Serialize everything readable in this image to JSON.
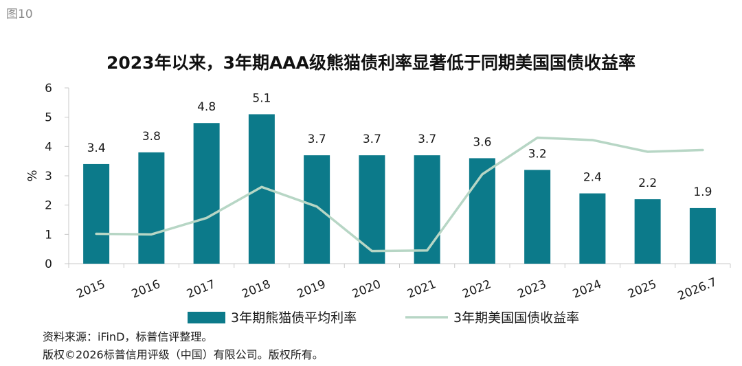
{
  "figure_label": "图10",
  "source_note": "资料来源：iFinD，标普信评整理。",
  "copyright": "版权©2026标普信用评级（中国）有限公司。版权所有。",
  "colors": {
    "bar": "#0c7a8a",
    "line": "#b7d6c5",
    "axis": "#c8c8c8",
    "text": "#1a1a1a"
  },
  "chart_data": {
    "type": "bar",
    "title": "2023年以来，3年期AAA级熊猫债利率显著低于同期美国国债收益率",
    "ylabel": "%",
    "xlabel": "",
    "ylim": [
      0,
      6
    ],
    "yticks": [
      "0",
      "1",
      "2",
      "3",
      "4",
      "5",
      "6"
    ],
    "categories": [
      "2015",
      "2016",
      "2017",
      "2018",
      "2019",
      "2020",
      "2021",
      "2022",
      "2023",
      "2024",
      "2025",
      "2026.7"
    ],
    "series": [
      {
        "name": "3年期熊猫债平均利率",
        "kind": "bar",
        "values": [
          3.4,
          3.8,
          4.8,
          5.1,
          3.7,
          3.7,
          3.7,
          3.6,
          3.2,
          2.4,
          2.2,
          1.9
        ],
        "labels": [
          "3.4",
          "3.8",
          "4.8",
          "5.1",
          "3.7",
          "3.7",
          "3.7",
          "3.6",
          "3.2",
          "2.4",
          "2.2",
          "1.9"
        ]
      },
      {
        "name": "3年期美国国债收益率",
        "kind": "line",
        "values": [
          1.02,
          1.0,
          1.56,
          2.62,
          1.95,
          0.43,
          0.45,
          3.05,
          4.3,
          4.22,
          3.82,
          3.88
        ]
      }
    ],
    "legend": "bottom",
    "grid": false
  }
}
